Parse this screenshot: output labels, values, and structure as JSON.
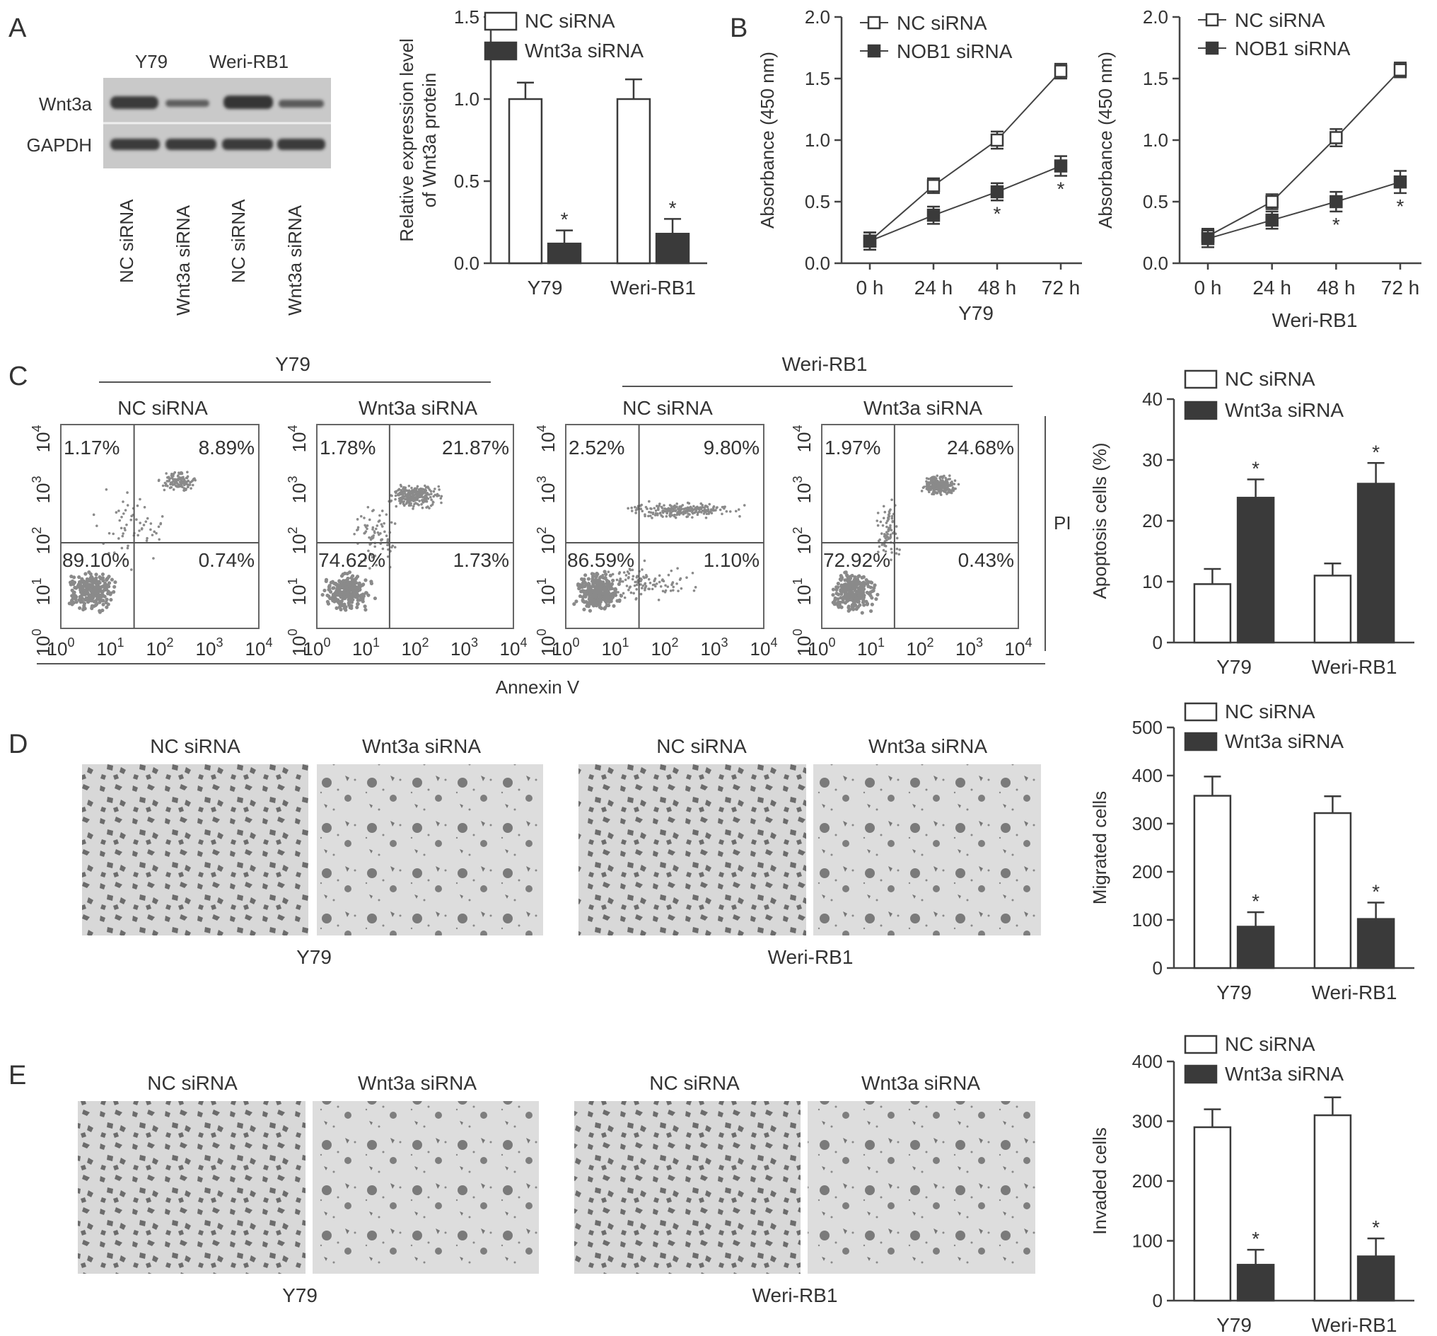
{
  "panel_labels": [
    "A",
    "B",
    "C",
    "D",
    "E"
  ],
  "colors": {
    "filled": "#3a3a3a",
    "open": "#ffffff",
    "axis": "#444444",
    "dots": "#8a8a8a",
    "star": "#777777"
  },
  "western_blot": {
    "cell_lines": [
      "Y79",
      "Weri-RB1"
    ],
    "rows": [
      "Wnt3a",
      "GAPDH"
    ],
    "lanes": [
      "NC siRNA",
      "Wnt3a siRNA",
      "NC siRNA",
      "Wnt3a siRNA"
    ]
  },
  "flow": {
    "groups": [
      "Y79",
      "Weri-RB1"
    ],
    "titles": [
      "NC siRNA",
      "Wnt3a siRNA",
      "NC siRNA",
      "Wnt3a siRNA"
    ],
    "quadrants": [
      [
        "1.17%",
        "8.89%",
        "89.10%",
        "0.74%"
      ],
      [
        "1.78%",
        "21.87%",
        "74.62%",
        "1.73%"
      ],
      [
        "2.52%",
        "9.80%",
        "86.59%",
        "1.10%"
      ],
      [
        "1.97%",
        "24.68%",
        "72.92%",
        "0.43%"
      ]
    ],
    "y_axis_label": "PI",
    "x_axis_label": "Annexin V",
    "tick_exponents": [
      "0",
      "1",
      "2",
      "3",
      "4"
    ],
    "tick_base": "10"
  },
  "micro": {
    "titles": [
      "NC siRNA",
      "Wnt3a siRNA",
      "NC siRNA",
      "Wnt3a siRNA"
    ],
    "groups": [
      "Y79",
      "Weri-RB1"
    ]
  },
  "chart_data": [
    {
      "id": "A-bar",
      "type": "bar",
      "ylabel": "Relative expression level of Wnt3a protein",
      "ylabel_lines": [
        "Relative expression level",
        "of Wnt3a protein"
      ],
      "categories": [
        "Y79",
        "Weri-RB1"
      ],
      "ylim": [
        0,
        1.5
      ],
      "yticks": [
        0.0,
        0.5,
        1.0,
        1.5
      ],
      "tick_decimals": 1,
      "series": [
        {
          "name": "NC siRNA",
          "style": "open",
          "values": [
            1.0,
            1.0
          ],
          "errors": [
            0.1,
            0.12
          ],
          "sig": [
            false,
            false
          ]
        },
        {
          "name": "Wnt3a siRNA",
          "style": "filled",
          "values": [
            0.12,
            0.18
          ],
          "errors": [
            0.08,
            0.09
          ],
          "sig": [
            true,
            true
          ]
        }
      ]
    },
    {
      "id": "B-Y79",
      "type": "line",
      "ylabel": "Absorbance (450 nm)",
      "xlabel": "Y79",
      "categories": [
        "0 h",
        "24 h",
        "48 h",
        "72 h"
      ],
      "ylim": [
        0,
        2.0
      ],
      "yticks": [
        0.0,
        0.5,
        1.0,
        1.5,
        2.0
      ],
      "tick_decimals": 1,
      "series": [
        {
          "name": "NC siRNA",
          "style": "open",
          "values": [
            0.18,
            0.63,
            1.0,
            1.56
          ],
          "errors": [
            0.07,
            0.06,
            0.07,
            0.06
          ],
          "sig": [
            false,
            false,
            false,
            false
          ]
        },
        {
          "name": "NOB1 siRNA",
          "style": "filled",
          "values": [
            0.18,
            0.39,
            0.58,
            0.79
          ],
          "errors": [
            0.07,
            0.07,
            0.07,
            0.08
          ],
          "sig": [
            false,
            false,
            true,
            true
          ]
        }
      ]
    },
    {
      "id": "B-Weri",
      "type": "line",
      "ylabel": "Absorbance (450 nm)",
      "xlabel": "Weri-RB1",
      "categories": [
        "0 h",
        "24 h",
        "48 h",
        "72 h"
      ],
      "ylim": [
        0,
        2.0
      ],
      "yticks": [
        0.0,
        0.5,
        1.0,
        1.5,
        2.0
      ],
      "tick_decimals": 1,
      "series": [
        {
          "name": "NC siRNA",
          "style": "open",
          "values": [
            0.22,
            0.5,
            1.02,
            1.57
          ],
          "errors": [
            0.06,
            0.06,
            0.07,
            0.06
          ],
          "sig": [
            false,
            false,
            false,
            false
          ]
        },
        {
          "name": "NOB1 siRNA",
          "style": "filled",
          "values": [
            0.2,
            0.35,
            0.5,
            0.66
          ],
          "errors": [
            0.07,
            0.07,
            0.08,
            0.09
          ],
          "sig": [
            false,
            false,
            true,
            true
          ]
        }
      ]
    },
    {
      "id": "C-bar",
      "type": "bar",
      "ylabel": "Apoptosis cells (%)",
      "categories": [
        "Y79",
        "Weri-RB1"
      ],
      "ylim": [
        0,
        40
      ],
      "yticks": [
        0,
        10,
        20,
        30,
        40
      ],
      "tick_decimals": 0,
      "series": [
        {
          "name": "NC siRNA",
          "style": "open",
          "values": [
            9.6,
            11.0
          ],
          "errors": [
            2.5,
            2.0
          ],
          "sig": [
            false,
            false
          ]
        },
        {
          "name": "Wnt3a siRNA",
          "style": "filled",
          "values": [
            23.8,
            26.1
          ],
          "errors": [
            3.0,
            3.4
          ],
          "sig": [
            true,
            true
          ]
        }
      ]
    },
    {
      "id": "D-bar",
      "type": "bar",
      "ylabel": "Migrated cells",
      "categories": [
        "Y79",
        "Weri-RB1"
      ],
      "ylim": [
        0,
        500
      ],
      "yticks": [
        0,
        100,
        200,
        300,
        400,
        500
      ],
      "tick_decimals": 0,
      "series": [
        {
          "name": "NC siRNA",
          "style": "open",
          "values": [
            358,
            322
          ],
          "errors": [
            40,
            35
          ],
          "sig": [
            false,
            false
          ]
        },
        {
          "name": "Wnt3a siRNA",
          "style": "filled",
          "values": [
            86,
            102
          ],
          "errors": [
            30,
            34
          ],
          "sig": [
            true,
            true
          ]
        }
      ]
    },
    {
      "id": "E-bar",
      "type": "bar",
      "ylabel": "Invaded cells",
      "categories": [
        "Y79",
        "Weri-RB1"
      ],
      "ylim": [
        0,
        400
      ],
      "yticks": [
        0,
        100,
        200,
        300,
        400
      ],
      "tick_decimals": 0,
      "series": [
        {
          "name": "NC siRNA",
          "style": "open",
          "values": [
            290,
            310
          ],
          "errors": [
            30,
            30
          ],
          "sig": [
            false,
            false
          ]
        },
        {
          "name": "Wnt3a siRNA",
          "style": "filled",
          "values": [
            60,
            74
          ],
          "errors": [
            25,
            30
          ],
          "sig": [
            true,
            true
          ]
        }
      ]
    }
  ]
}
